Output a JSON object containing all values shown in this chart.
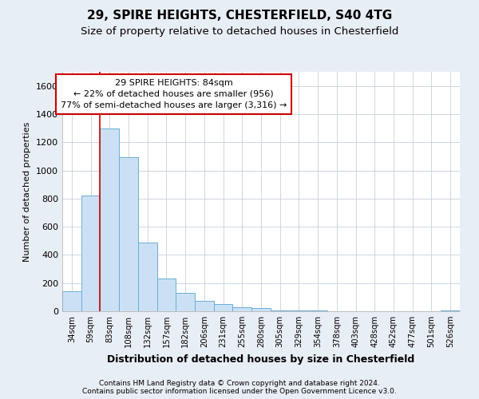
{
  "title1": "29, SPIRE HEIGHTS, CHESTERFIELD, S40 4TG",
  "title2": "Size of property relative to detached houses in Chesterfield",
  "xlabel": "Distribution of detached houses by size in Chesterfield",
  "ylabel": "Number of detached properties",
  "footer1": "Contains HM Land Registry data © Crown copyright and database right 2024.",
  "footer2": "Contains public sector information licensed under the Open Government Licence v3.0.",
  "bins": [
    "34sqm",
    "59sqm",
    "83sqm",
    "108sqm",
    "132sqm",
    "157sqm",
    "182sqm",
    "206sqm",
    "231sqm",
    "255sqm",
    "280sqm",
    "305sqm",
    "329sqm",
    "354sqm",
    "378sqm",
    "403sqm",
    "428sqm",
    "452sqm",
    "477sqm",
    "501sqm",
    "526sqm"
  ],
  "values": [
    140,
    820,
    1300,
    1095,
    490,
    235,
    130,
    75,
    50,
    30,
    20,
    5,
    5,
    5,
    0,
    0,
    0,
    0,
    0,
    0,
    5
  ],
  "bar_color": "#cce0f5",
  "bar_edge_color": "#6aaed6",
  "vline_color": "#cc0000",
  "annotation_text": "29 SPIRE HEIGHTS: 84sqm\n← 22% of detached houses are smaller (956)\n77% of semi-detached houses are larger (3,316) →",
  "annotation_box_color": "#ffffff",
  "annotation_box_edge": "#cc0000",
  "ylim": [
    0,
    1700
  ],
  "yticks": [
    0,
    200,
    400,
    600,
    800,
    1000,
    1200,
    1400,
    1600
  ],
  "bg_color": "#e8eef5",
  "plot_bg": "#ffffff",
  "grid_color": "#c8d0dc",
  "title1_fontsize": 11,
  "title2_fontsize": 9.5
}
